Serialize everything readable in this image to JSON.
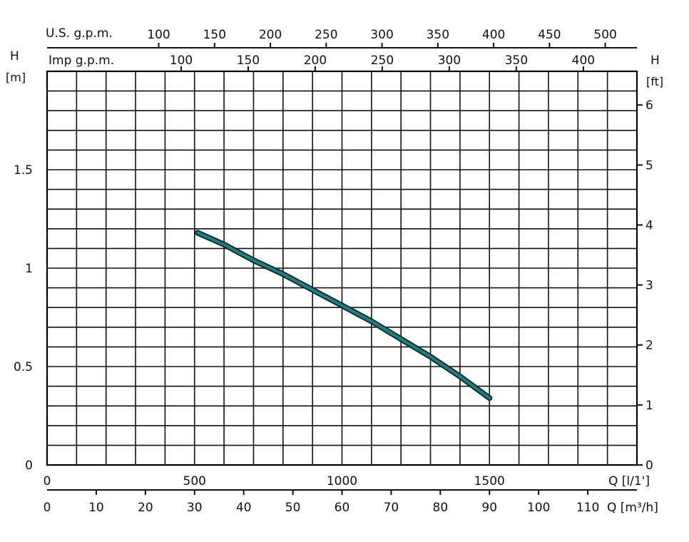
{
  "chart_data": {
    "type": "line",
    "title": "",
    "xlabel": "Q [l/1']",
    "ylabel": "H [m]",
    "xlim": [
      0,
      2000
    ],
    "ylim": [
      0,
      2.0
    ],
    "grid": true,
    "x_ticks": [
      0,
      500,
      1000,
      1500
    ],
    "x_tick_labels": [
      "0",
      "500",
      "1000",
      "1500"
    ],
    "y_ticks": [
      0,
      0.5,
      1,
      1.5
    ],
    "y_tick_labels": [
      "0",
      "0.5",
      "1",
      "1.5"
    ],
    "series": [
      {
        "x": [
          510,
          600,
          700,
          800,
          900,
          1000,
          1100,
          1200,
          1300,
          1400,
          1500
        ],
        "y": [
          1.18,
          1.12,
          1.04,
          0.97,
          0.89,
          0.81,
          0.73,
          0.64,
          0.55,
          0.45,
          0.34
        ],
        "color": "#1f7f86"
      }
    ],
    "secondary_axes": {
      "right_ft": {
        "label": "H",
        "unit": "[ft]",
        "ticks": [
          0,
          1,
          2,
          3,
          4,
          5,
          6
        ],
        "tick_labels": [
          "0",
          "1",
          "2",
          "3",
          "4",
          "5",
          "6"
        ],
        "ft_per_m": 3.2808
      },
      "bottom_m3h": {
        "label": "Q [m³/h]",
        "ticks": [
          0,
          10,
          20,
          30,
          40,
          50,
          60,
          70,
          80,
          90,
          100,
          110
        ],
        "tick_labels": [
          "0",
          "10",
          "20",
          "30",
          "40",
          "50",
          "60",
          "70",
          "80",
          "90",
          "100",
          "110"
        ],
        "l_min_per_unit": 16.6667
      },
      "top_us_gpm": {
        "label": "U.S. g.p.m.",
        "ticks": [
          100,
          150,
          200,
          250,
          300,
          350,
          400,
          450,
          500
        ],
        "tick_labels": [
          "100",
          "150",
          "200",
          "250",
          "300",
          "350",
          "400",
          "450",
          "500"
        ],
        "l_min_per_unit": 3.7854
      },
      "top_imp_gpm": {
        "label": "Imp g.p.m.",
        "ticks": [
          100,
          150,
          200,
          250,
          300,
          350,
          400
        ],
        "tick_labels": [
          "100",
          "150",
          "200",
          "250",
          "300",
          "350",
          "400"
        ],
        "l_min_per_unit": 4.546
      }
    },
    "left_axis_header": {
      "label": "H",
      "unit": "[m]"
    }
  }
}
